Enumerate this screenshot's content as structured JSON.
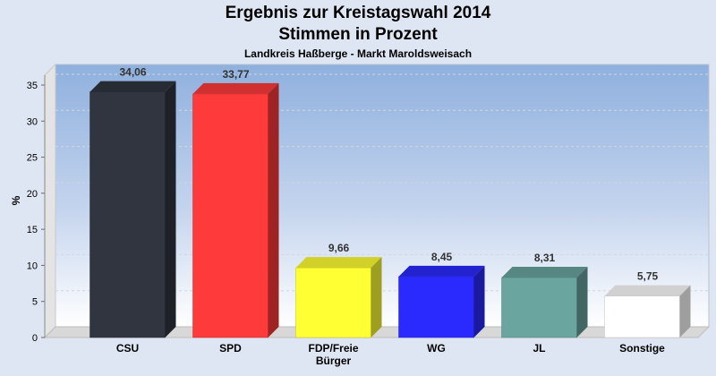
{
  "chart_data": {
    "type": "bar",
    "title": "Ergebnis zur Kreistagswahl 2014",
    "subtitle": "Stimmen in Prozent",
    "caption": "Landkreis Haßberge - Markt Maroldsweisach",
    "ylabel": "%",
    "xlabel": "",
    "ylim": [
      0,
      35
    ],
    "yticks": [
      0,
      5,
      10,
      15,
      20,
      25,
      30,
      35
    ],
    "grid": true,
    "categories": [
      "CSU",
      "SPD",
      "FDP/Freie Bürger",
      "WG",
      "JL",
      "Sonstige"
    ],
    "category_lines": [
      [
        "CSU"
      ],
      [
        "SPD"
      ],
      [
        "FDP/Freie",
        "Bürger"
      ],
      [
        "WG"
      ],
      [
        "JL"
      ],
      [
        "Sonstige"
      ]
    ],
    "values": [
      34.06,
      33.77,
      9.66,
      8.45,
      8.31,
      5.75
    ],
    "value_labels": [
      "34,06",
      "33,77",
      "9,66",
      "8,45",
      "8,31",
      "5,75"
    ],
    "colors": [
      "#303540",
      "#ff3a3a",
      "#ffff33",
      "#2a2aff",
      "#6aa5a0",
      "#ffffff"
    ]
  }
}
